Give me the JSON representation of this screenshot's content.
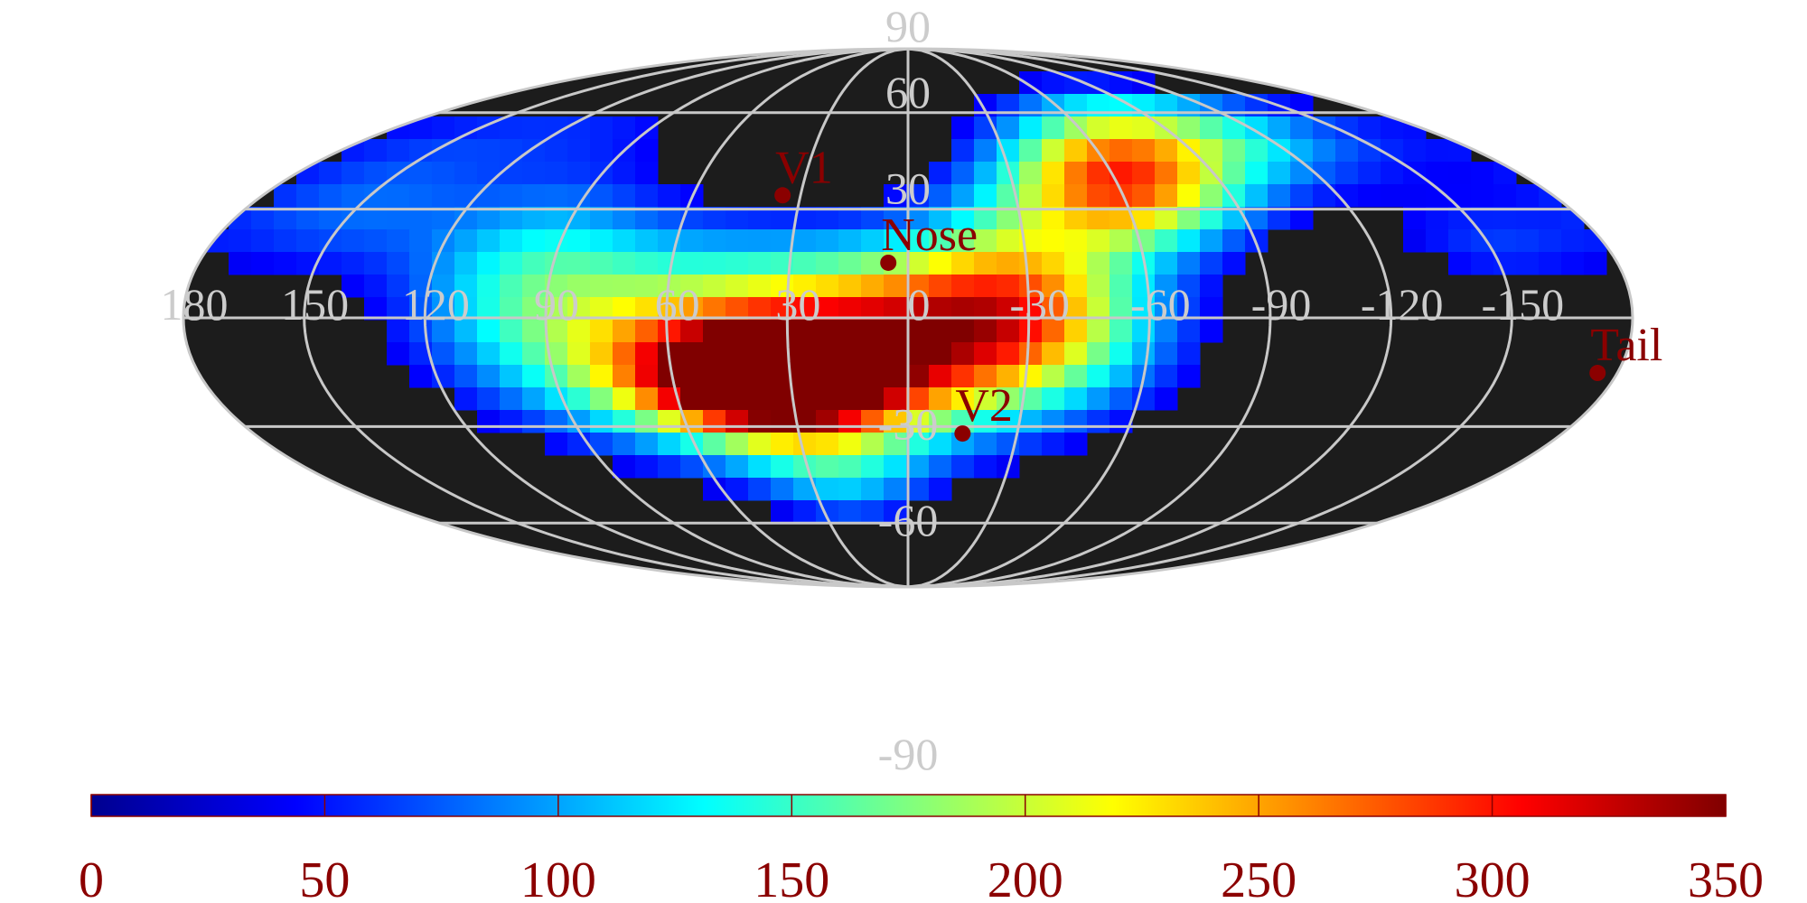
{
  "chart_data": {
    "type": "heatmap",
    "projection": "mollweide",
    "background_color": "#1c1c1c",
    "grid_color": "#c8c8c8",
    "marker_color": "#8b0000",
    "lon_ticks": [
      "180",
      "150",
      "120",
      "90",
      "60",
      "30",
      "0",
      "-30",
      "-60",
      "-90",
      "-120",
      "-150"
    ],
    "lat_ticks": [
      "90",
      "60",
      "30",
      "-30",
      "-60",
      "-90"
    ],
    "colorbar": {
      "min": 0,
      "max": 350,
      "ticks": [
        "0",
        "50",
        "100",
        "150",
        "200",
        "250",
        "300",
        "350"
      ],
      "colormap": "jet"
    },
    "markers": [
      {
        "label": "V1",
        "lon": 35,
        "lat": 34
      },
      {
        "label": "Nose",
        "lon": 5,
        "lat": 15
      },
      {
        "label": "V2",
        "lon": -15,
        "lat": -32
      },
      {
        "label": "Tail",
        "lon": -175,
        "lat": -15
      }
    ],
    "blobs": [
      {
        "lon": 35,
        "lat": -18,
        "slon": 22,
        "slat": 10,
        "amp": 290
      },
      {
        "lon": 15,
        "lat": -12,
        "slon": 45,
        "slat": 18,
        "amp": 170
      },
      {
        "lon": 60,
        "lat": -5,
        "slon": 38,
        "slat": 22,
        "amp": 130
      },
      {
        "lon": -5,
        "lat": 0,
        "slon": 30,
        "slat": 14,
        "amp": 110
      },
      {
        "lon": -30,
        "lat": 8,
        "slon": 22,
        "slat": 20,
        "amp": 150
      },
      {
        "lon": -60,
        "lat": 35,
        "slon": 22,
        "slat": 12,
        "amp": 210
      },
      {
        "lon": -80,
        "lat": 50,
        "slon": 30,
        "slat": 12,
        "amp": 120
      },
      {
        "lon": -110,
        "lat": 55,
        "slon": 45,
        "slat": 12,
        "amp": 80
      },
      {
        "lon": 150,
        "lat": 30,
        "slon": 28,
        "slat": 14,
        "amp": 75
      },
      {
        "lon": 20,
        "lat": -45,
        "slon": 20,
        "slat": 12,
        "amp": 85
      },
      {
        "lon": 95,
        "lat": 15,
        "slon": 20,
        "slat": 18,
        "amp": 80
      },
      {
        "lon": -150,
        "lat": 20,
        "slon": 20,
        "slat": 10,
        "amp": 55
      },
      {
        "lon": 120,
        "lat": 55,
        "slon": 40,
        "slat": 10,
        "amp": 45
      }
    ]
  }
}
